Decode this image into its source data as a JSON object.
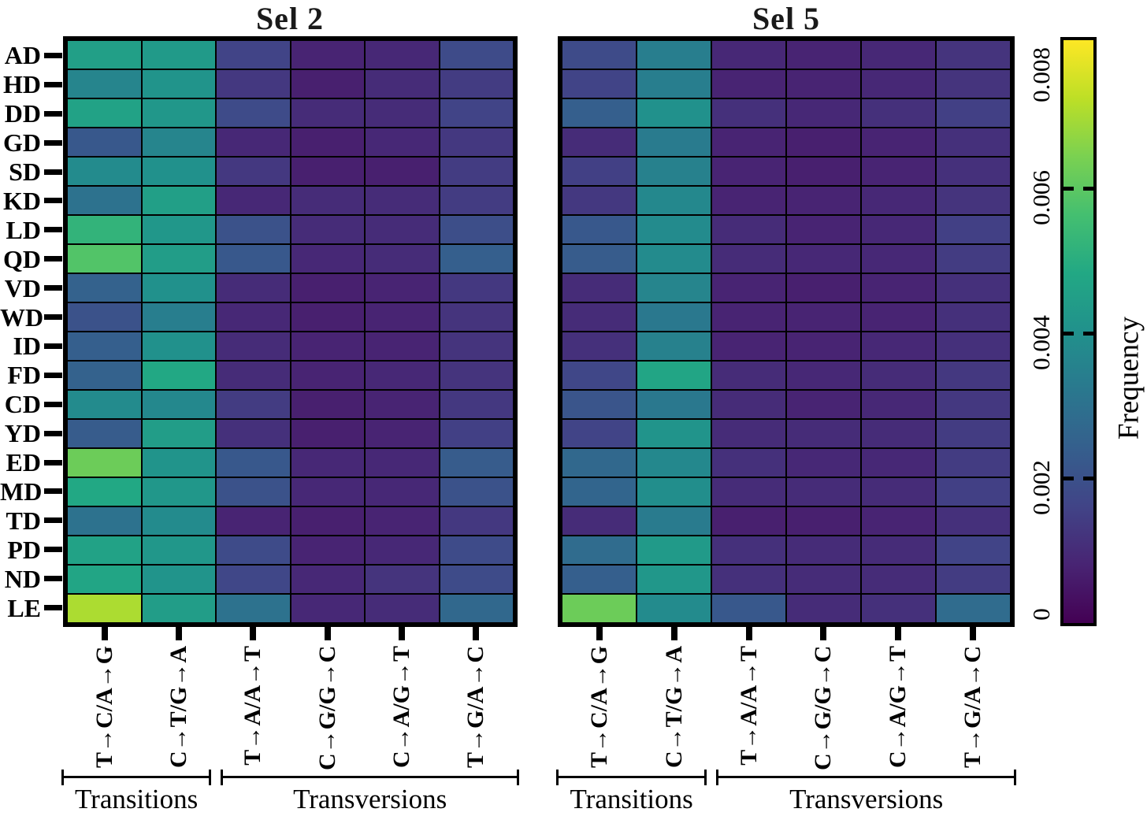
{
  "chart_data": [
    {
      "type": "heatmap",
      "title": "Sel 2",
      "rows": [
        "AD",
        "HD",
        "DD",
        "GD",
        "SD",
        "KD",
        "LD",
        "QD",
        "VD",
        "WD",
        "ID",
        "FD",
        "CD",
        "YD",
        "ED",
        "MD",
        "TD",
        "PD",
        "ND",
        "LE"
      ],
      "columns": [
        "T→C/A→G",
        "C→T/G→A",
        "T→A/A→T",
        "C→G/G→C",
        "C→A/G→T",
        "T→G/A→C"
      ],
      "column_groups": [
        {
          "label": "Transitions",
          "columns": [
            0,
            1
          ]
        },
        {
          "label": "Transversions",
          "columns": [
            2,
            5
          ]
        }
      ],
      "vmin": 0,
      "vmax": 0.008,
      "values": [
        [
          0.0045,
          0.0043,
          0.0016,
          0.0008,
          0.0009,
          0.0018
        ],
        [
          0.0036,
          0.0041,
          0.0013,
          0.0007,
          0.001,
          0.0014
        ],
        [
          0.0046,
          0.0042,
          0.0018,
          0.001,
          0.001,
          0.0016
        ],
        [
          0.0022,
          0.0036,
          0.0009,
          0.0007,
          0.0009,
          0.0013
        ],
        [
          0.0038,
          0.004,
          0.0013,
          0.0007,
          0.0007,
          0.0014
        ],
        [
          0.003,
          0.0045,
          0.0009,
          0.001,
          0.001,
          0.0014
        ],
        [
          0.0052,
          0.0042,
          0.002,
          0.001,
          0.001,
          0.0019
        ],
        [
          0.0058,
          0.0044,
          0.0022,
          0.0009,
          0.001,
          0.0024
        ],
        [
          0.0025,
          0.004,
          0.001,
          0.0007,
          0.0008,
          0.0013
        ],
        [
          0.002,
          0.0034,
          0.0009,
          0.0007,
          0.0008,
          0.0012
        ],
        [
          0.0024,
          0.004,
          0.001,
          0.0008,
          0.0008,
          0.0012
        ],
        [
          0.0025,
          0.0048,
          0.001,
          0.0008,
          0.0009,
          0.0012
        ],
        [
          0.0038,
          0.0037,
          0.0014,
          0.0007,
          0.0008,
          0.0013
        ],
        [
          0.0023,
          0.0044,
          0.0011,
          0.0007,
          0.0008,
          0.0015
        ],
        [
          0.0062,
          0.0041,
          0.0022,
          0.0009,
          0.0009,
          0.0023
        ],
        [
          0.0048,
          0.0042,
          0.002,
          0.0009,
          0.0009,
          0.002
        ],
        [
          0.003,
          0.0038,
          0.0008,
          0.0007,
          0.0008,
          0.0013
        ],
        [
          0.0046,
          0.0042,
          0.0018,
          0.0008,
          0.0009,
          0.0018
        ],
        [
          0.0047,
          0.0041,
          0.0017,
          0.0009,
          0.0012,
          0.0018
        ],
        [
          0.007,
          0.0044,
          0.003,
          0.0009,
          0.001,
          0.0027
        ]
      ]
    },
    {
      "type": "heatmap",
      "title": "Sel 5",
      "rows": [
        "AD",
        "HD",
        "DD",
        "GD",
        "SD",
        "KD",
        "LD",
        "QD",
        "VD",
        "WD",
        "ID",
        "FD",
        "CD",
        "YD",
        "ED",
        "MD",
        "TD",
        "PD",
        "ND",
        "LE"
      ],
      "columns": [
        "T→C/A→G",
        "C→T/G→A",
        "T→A/A→T",
        "C→G/G→C",
        "C→A/G→T",
        "T→G/A→C"
      ],
      "column_groups": [
        {
          "label": "Transitions",
          "columns": [
            0,
            1
          ]
        },
        {
          "label": "Transversions",
          "columns": [
            2,
            5
          ]
        }
      ],
      "vmin": 0,
      "vmax": 0.008,
      "values": [
        [
          0.0018,
          0.0034,
          0.0009,
          0.0008,
          0.0009,
          0.0012
        ],
        [
          0.0016,
          0.0034,
          0.0008,
          0.0008,
          0.0009,
          0.0012
        ],
        [
          0.0024,
          0.004,
          0.0011,
          0.0009,
          0.0011,
          0.0015
        ],
        [
          0.001,
          0.0033,
          0.0008,
          0.0007,
          0.0008,
          0.0011
        ],
        [
          0.0015,
          0.0035,
          0.0008,
          0.0007,
          0.0008,
          0.0011
        ],
        [
          0.0013,
          0.0037,
          0.0008,
          0.0008,
          0.0009,
          0.0012
        ],
        [
          0.0022,
          0.0038,
          0.001,
          0.0008,
          0.0009,
          0.0015
        ],
        [
          0.0023,
          0.0038,
          0.001,
          0.0009,
          0.0009,
          0.0014
        ],
        [
          0.001,
          0.0036,
          0.0008,
          0.0007,
          0.0008,
          0.0011
        ],
        [
          0.001,
          0.0032,
          0.0008,
          0.0008,
          0.0008,
          0.0011
        ],
        [
          0.0011,
          0.0035,
          0.0008,
          0.0008,
          0.0009,
          0.0011
        ],
        [
          0.0017,
          0.0047,
          0.001,
          0.0009,
          0.001,
          0.0013
        ],
        [
          0.0021,
          0.0032,
          0.001,
          0.0008,
          0.0009,
          0.0013
        ],
        [
          0.0016,
          0.0041,
          0.001,
          0.001,
          0.001,
          0.0014
        ],
        [
          0.0027,
          0.0037,
          0.0011,
          0.0009,
          0.0009,
          0.0014
        ],
        [
          0.0026,
          0.0039,
          0.001,
          0.001,
          0.001,
          0.0015
        ],
        [
          0.001,
          0.0033,
          0.0007,
          0.0007,
          0.0008,
          0.0011
        ],
        [
          0.0028,
          0.0043,
          0.0011,
          0.001,
          0.001,
          0.0016
        ],
        [
          0.0024,
          0.0042,
          0.0011,
          0.001,
          0.001,
          0.0014
        ],
        [
          0.0062,
          0.0038,
          0.0022,
          0.001,
          0.0011,
          0.0028
        ]
      ]
    }
  ],
  "colorbar": {
    "label": "Frequency",
    "vmin": 0,
    "vmax": 0.008,
    "tick_labels": [
      "0",
      "0.002",
      "0.004",
      "0.006",
      "0.008"
    ],
    "tick_values": [
      0,
      0.002,
      0.004,
      0.006,
      0.008
    ],
    "colormap": "viridis"
  },
  "colors": {
    "viridis_anchors": [
      "#440154",
      "#482473",
      "#414487",
      "#355f8d",
      "#2a788e",
      "#21918c",
      "#22a884",
      "#44bf70",
      "#7ad151",
      "#bddf26",
      "#fde725"
    ],
    "grid_line": "#000000",
    "text": "#000000",
    "background": "#ffffff"
  }
}
